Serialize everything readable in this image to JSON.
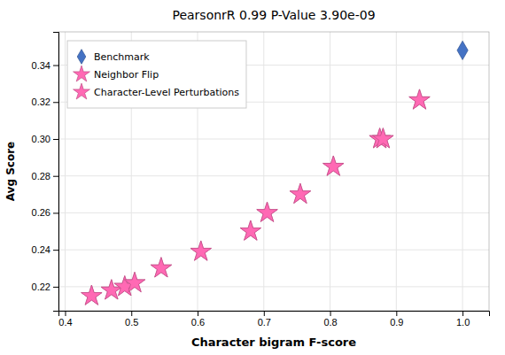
{
  "chart_data": {
    "type": "scatter",
    "title": "PearsonrR 0.99 P-Value 3.90e-09",
    "xlabel": "Character bigram F-score",
    "ylabel": "Avg Score",
    "series": [
      {
        "name": "Benchmark",
        "color": "#4472c4",
        "marker": "diamond",
        "x": [
          1.0
        ],
        "values": [
          0.348
        ]
      },
      {
        "name": "Neighbor Flip",
        "color": "#FF69B4",
        "marker": "star",
        "x": [
          0.44,
          0.47,
          0.49,
          0.505,
          0.545,
          0.605,
          0.68,
          0.705,
          0.755,
          0.805,
          0.875,
          0.88,
          0.935
        ],
        "values": [
          0.215,
          0.218,
          0.22,
          0.222,
          0.23,
          0.239,
          0.25,
          0.26,
          0.27,
          0.285,
          0.3,
          0.3,
          0.321
        ]
      },
      {
        "name": "Character-Level Perturbations",
        "color": "#FF69B4",
        "marker": "star",
        "x": [
          0.44,
          0.47,
          0.49,
          0.505,
          0.545,
          0.605,
          0.68,
          0.705,
          0.755,
          0.805,
          0.875,
          0.88,
          0.935
        ],
        "values": [
          0.215,
          0.218,
          0.22,
          0.222,
          0.23,
          0.239,
          0.25,
          0.26,
          0.27,
          0.285,
          0.3,
          0.3,
          0.321
        ]
      }
    ],
    "xlim": [
      0.39,
      1.04
    ],
    "ylim": [
      0.207,
      0.358
    ],
    "xticks": [
      0.4,
      0.5,
      0.6,
      0.7,
      0.8,
      0.9,
      {
        "value": 1.0,
        "label": "1.0"
      }
    ],
    "yticks": [
      0.22,
      0.24,
      0.26,
      0.28,
      {
        "value": 0.3,
        "label": "0.30"
      },
      0.32,
      0.34
    ],
    "grid": true,
    "legend": "upper left"
  }
}
